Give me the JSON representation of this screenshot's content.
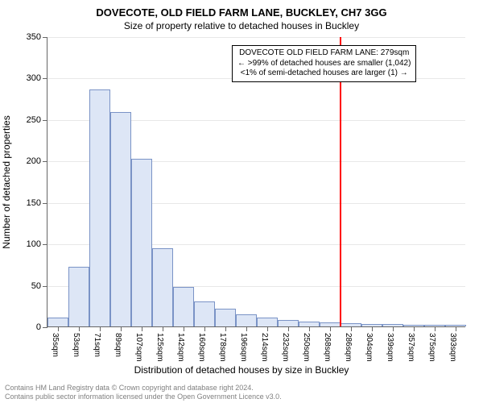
{
  "title": "DOVECOTE, OLD FIELD FARM LANE, BUCKLEY, CH7 3GG",
  "subtitle": "Size of property relative to detached houses in Buckley",
  "y_axis_label": "Number of detached properties",
  "x_axis_label": "Distribution of detached houses by size in Buckley",
  "chart": {
    "type": "bar",
    "background_color": "#ffffff",
    "grid_color": "#e8e8e8",
    "axis_color": "#666666",
    "bar_fill": "#dde6f6",
    "bar_border": "#7a93c6",
    "marker_color": "#ff0000",
    "ylim": [
      0,
      350
    ],
    "ytick_step": 50,
    "yticks": [
      0,
      50,
      100,
      150,
      200,
      250,
      300,
      350
    ],
    "x_labels": [
      "35sqm",
      "53sqm",
      "71sqm",
      "89sqm",
      "107sqm",
      "125sqm",
      "142sqm",
      "160sqm",
      "178sqm",
      "196sqm",
      "214sqm",
      "232sqm",
      "250sqm",
      "268sqm",
      "286sqm",
      "304sqm",
      "339sqm",
      "357sqm",
      "375sqm",
      "393sqm"
    ],
    "values": [
      11,
      72,
      286,
      259,
      202,
      94,
      48,
      30,
      21,
      15,
      11,
      8,
      6,
      5,
      4,
      3,
      3,
      2,
      2,
      2
    ],
    "marker_index": 14,
    "bar_width_ratio": 1.0,
    "title_fontsize": 13,
    "subtitle_fontsize": 12,
    "axis_label_fontsize": 12,
    "tick_fontsize": 11,
    "xtick_fontsize": 10,
    "annotation_fontsize": 10
  },
  "annotation": {
    "line1": "DOVECOTE OLD FIELD FARM LANE: 279sqm",
    "line2": "← >99% of detached houses are smaller (1,042)",
    "line3": "<1% of semi-detached houses are larger (1) →",
    "border_color": "#000000",
    "bg_color": "#ffffff"
  },
  "footer": {
    "line1": "Contains HM Land Registry data © Crown copyright and database right 2024.",
    "line2": "Contains public sector information licensed under the Open Government Licence v3.0."
  }
}
